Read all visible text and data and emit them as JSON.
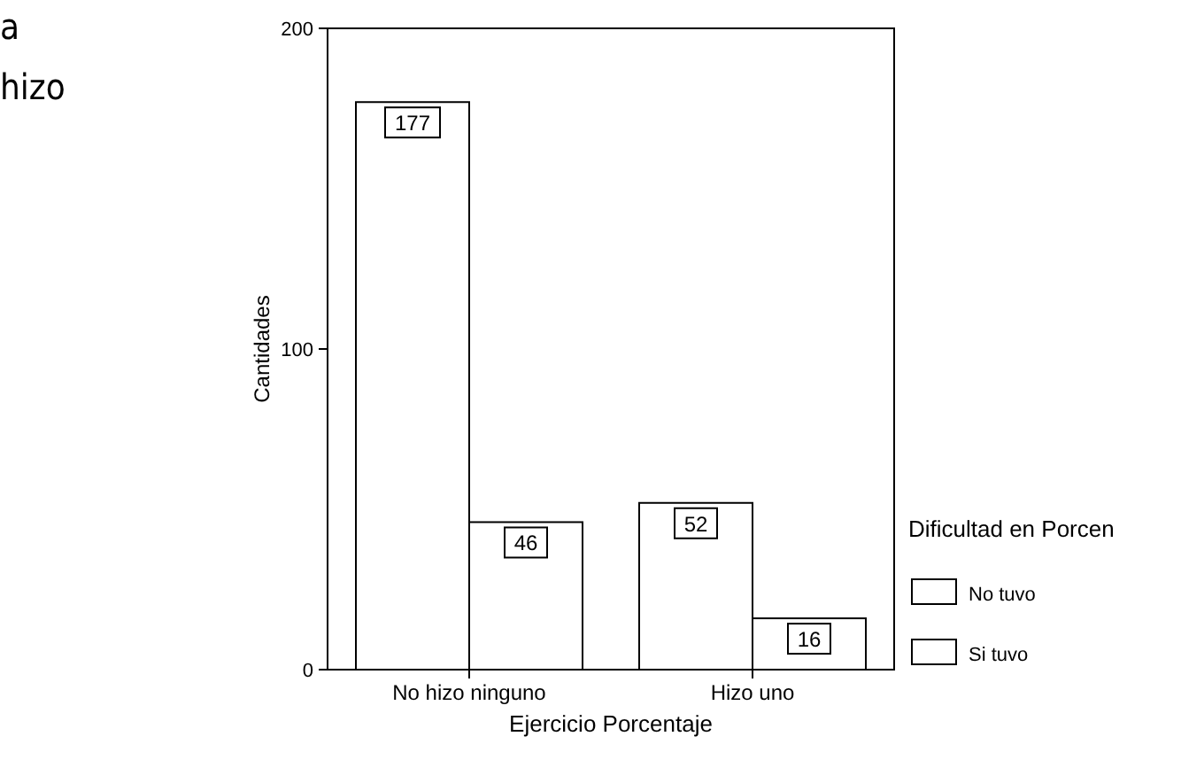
{
  "chart_data": {
    "type": "bar",
    "xlabel": "Ejercicio Porcentaje",
    "ylabel": "Cantidades",
    "legend_title": "Dificultad en Porcen",
    "annotations": [
      "a",
      "hizo"
    ],
    "categories": [
      "No hizo ninguno",
      "Hizo uno"
    ],
    "series": [
      {
        "name": "No tuvo",
        "color": "#ffffff",
        "values": [
          177,
          52
        ]
      },
      {
        "name": "Si tuvo",
        "color": "#ffffff",
        "values": [
          46,
          16
        ]
      }
    ],
    "ylim": [
      0,
      200
    ],
    "yticks": [
      0,
      100,
      200
    ],
    "data_labels": true,
    "legend": "right",
    "grid": false
  }
}
